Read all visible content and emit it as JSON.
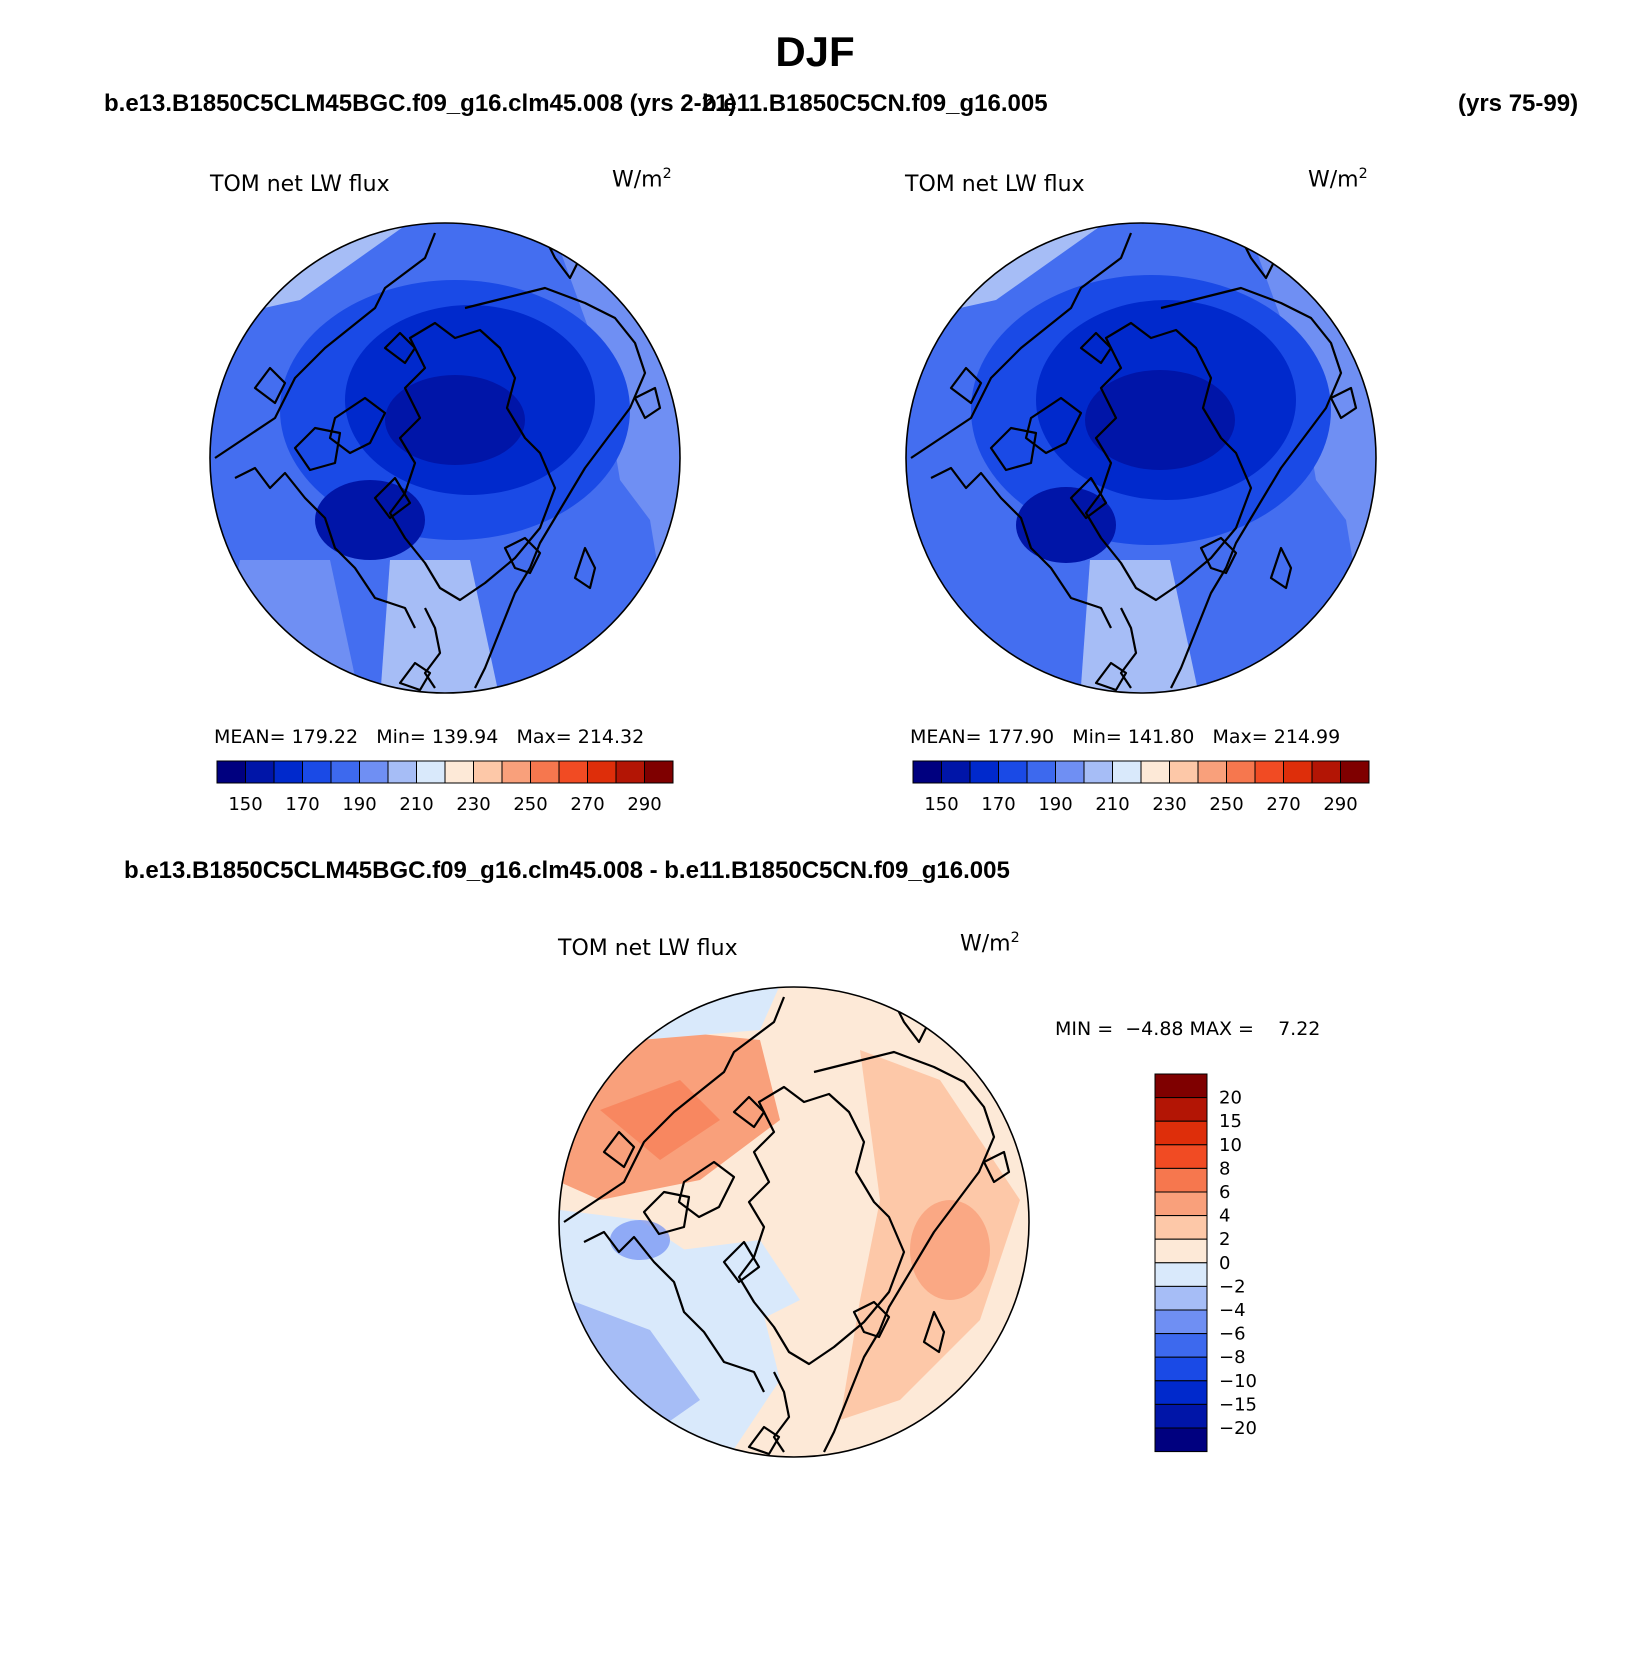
{
  "header": {
    "title": "DJF",
    "case1": "b.e13.B1850C5CLM45BGC.f09_g16.clm45.008 (yrs 2-21)",
    "case2": "b.e11.B1850C5CN.f09_g16.005",
    "case2_years": "(yrs 75-99)",
    "diff_title": "b.e13.B1850C5CLM45BGC.f09_g16.clm45.008 - b.e11.B1850C5CN.f09_g16.005"
  },
  "panels": [
    {
      "variable": "TOM net LW flux",
      "units_base": "W/m",
      "units_exp": "2",
      "mean_label": "MEAN=",
      "mean": "179.22",
      "min_label": "Min=",
      "min": "139.94",
      "max_label": "Max=",
      "max": "214.32"
    },
    {
      "variable": "TOM net LW flux",
      "units_base": "W/m",
      "units_exp": "2",
      "mean_label": "MEAN=",
      "mean": "177.90",
      "min_label": "Min=",
      "min": "141.80",
      "max_label": "Max=",
      "max": "214.99"
    },
    {
      "variable": "TOM net LW flux",
      "units_base": "W/m",
      "units_exp": "2",
      "min_label": "MIN =",
      "min": "−4.88",
      "max_label": "MAX =",
      "max": "7.22"
    }
  ],
  "colorbars": {
    "absolute": {
      "colors": [
        "#00007f",
        "#0015a8",
        "#0029cc",
        "#1a4ae6",
        "#3d69ee",
        "#6f8ff3",
        "#a6bdf6",
        "#d9e9fb",
        "#fde9d7",
        "#fdc8a8",
        "#f9a07b",
        "#f6774e",
        "#f14b23",
        "#de2e0a",
        "#b31505",
        "#7f0000"
      ],
      "tick_labels": [
        "150",
        "170",
        "190",
        "210",
        "230",
        "250",
        "270",
        "290"
      ]
    },
    "difference": {
      "colors": [
        "#00007f",
        "#0015a8",
        "#0029cc",
        "#1a4ae6",
        "#3d69ee",
        "#6f8ff3",
        "#a6bdf6",
        "#d9e9fb",
        "#fde9d7",
        "#fdc8a8",
        "#f9a07b",
        "#f6774e",
        "#f14b23",
        "#de2e0a",
        "#b31505",
        "#7f0000"
      ],
      "tick_labels": [
        "−20",
        "−15",
        "−10",
        "−8",
        "−6",
        "−4",
        "−2",
        "0",
        "2",
        "4",
        "6",
        "8",
        "10",
        "15",
        "20"
      ]
    }
  },
  "chart_data": [
    {
      "type": "heatmap",
      "title": "TOM net LW flux",
      "projection": "north-polar-stereographic",
      "case": "b.e13.B1850C5CLM45BGC.f09_g16.clm45.008 (yrs 2-21)",
      "units": "W/m2",
      "mean": 179.22,
      "min": 139.94,
      "max": 214.32,
      "levels": [
        150,
        160,
        170,
        180,
        190,
        200,
        210,
        220,
        230,
        240,
        250,
        260,
        270,
        280,
        290
      ]
    },
    {
      "type": "heatmap",
      "title": "TOM net LW flux",
      "projection": "north-polar-stereographic",
      "case": "b.e11.B1850C5CN.f09_g16.005 (yrs 75-99)",
      "units": "W/m2",
      "mean": 177.9,
      "min": 141.8,
      "max": 214.99,
      "levels": [
        150,
        160,
        170,
        180,
        190,
        200,
        210,
        220,
        230,
        240,
        250,
        260,
        270,
        280,
        290
      ]
    },
    {
      "type": "heatmap",
      "title": "TOM net LW flux",
      "projection": "north-polar-stereographic",
      "case": "b.e13.B1850C5CLM45BGC.f09_g16.clm45.008 - b.e11.B1850C5CN.f09_g16.005",
      "units": "W/m2",
      "min": -4.88,
      "max": 7.22,
      "levels": [
        -20,
        -15,
        -10,
        -8,
        -6,
        -4,
        -2,
        0,
        2,
        4,
        6,
        8,
        10,
        15,
        20
      ]
    }
  ]
}
